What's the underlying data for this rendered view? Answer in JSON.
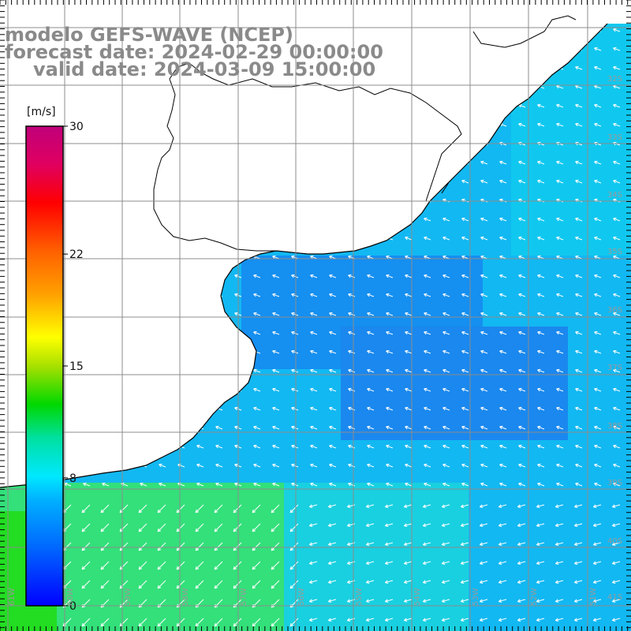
{
  "title": {
    "model": "modelo GEFS-WAVE (NCEP)",
    "forecast": "forecast date: 2024-02-29 00:00:00",
    "valid": "valid date: 2024-03-09 15:00:00"
  },
  "colorbar": {
    "unit": "[m/s]",
    "ticks": [
      "30",
      "22",
      "15",
      "8",
      "0"
    ],
    "tick_values": [
      30,
      22,
      15,
      8,
      0
    ],
    "range": [
      0,
      30
    ]
  },
  "longitude_labels": [
    "61W",
    "60W",
    "59W",
    "58W",
    "57W",
    "56W",
    "55W",
    "54W",
    "53W",
    "52W",
    "51W"
  ],
  "latitude_labels": [
    "32S",
    "33S",
    "34S",
    "35S",
    "36S",
    "37S",
    "38S",
    "39S",
    "40S",
    "41S"
  ],
  "colors": {
    "land": "#ffffff",
    "coastline": "#000000",
    "grid": "#8c8c8c",
    "title_text": "#8a8a8a",
    "arrows": "#ffffff"
  }
}
